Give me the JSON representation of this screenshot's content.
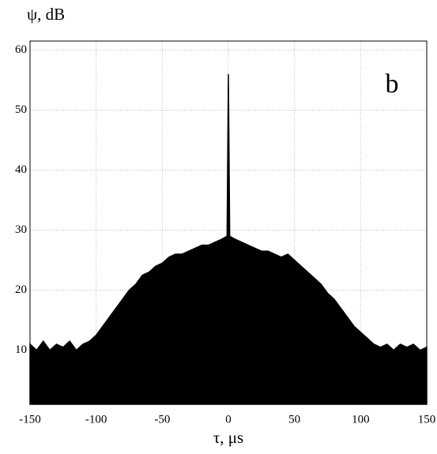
{
  "chart_data": {
    "type": "area",
    "ylabel": "ψ, dB",
    "xlabel": "τ, μs",
    "annotation": "b",
    "color": "#000000",
    "grid": true,
    "xlim": [
      -150,
      150
    ],
    "ylim": [
      1,
      61.5
    ],
    "xticks": [
      -150,
      -100,
      -50,
      0,
      50,
      100,
      150
    ],
    "yticks": [
      10,
      20,
      30,
      40,
      50,
      60
    ],
    "x": [
      -150,
      -145,
      -140,
      -135,
      -130,
      -125,
      -120,
      -115,
      -110,
      -105,
      -100,
      -95,
      -90,
      -85,
      -80,
      -75,
      -70,
      -65,
      -60,
      -55,
      -50,
      -45,
      -40,
      -35,
      -30,
      -25,
      -20,
      -15,
      -10,
      -5,
      -1,
      0,
      1,
      5,
      10,
      15,
      20,
      25,
      30,
      35,
      40,
      45,
      50,
      55,
      60,
      65,
      70,
      75,
      80,
      85,
      90,
      95,
      100,
      105,
      110,
      115,
      120,
      125,
      130,
      135,
      140,
      145,
      150
    ],
    "values": [
      11,
      10,
      11.5,
      10,
      11,
      10.5,
      11.5,
      10,
      11,
      11.5,
      12.5,
      14,
      15.5,
      17,
      18.5,
      20,
      21,
      22.5,
      23,
      24,
      24.5,
      25.5,
      26,
      26,
      26.5,
      27,
      27.5,
      27.5,
      28,
      28.5,
      29,
      56,
      29,
      28.5,
      28,
      27.5,
      27,
      26.5,
      26.5,
      26,
      25.5,
      26,
      25,
      24,
      23,
      22,
      21,
      19.5,
      18.5,
      17,
      15.5,
      14,
      13,
      12,
      11,
      10.5,
      11,
      10,
      11,
      10.5,
      11,
      10,
      10.5
    ]
  }
}
